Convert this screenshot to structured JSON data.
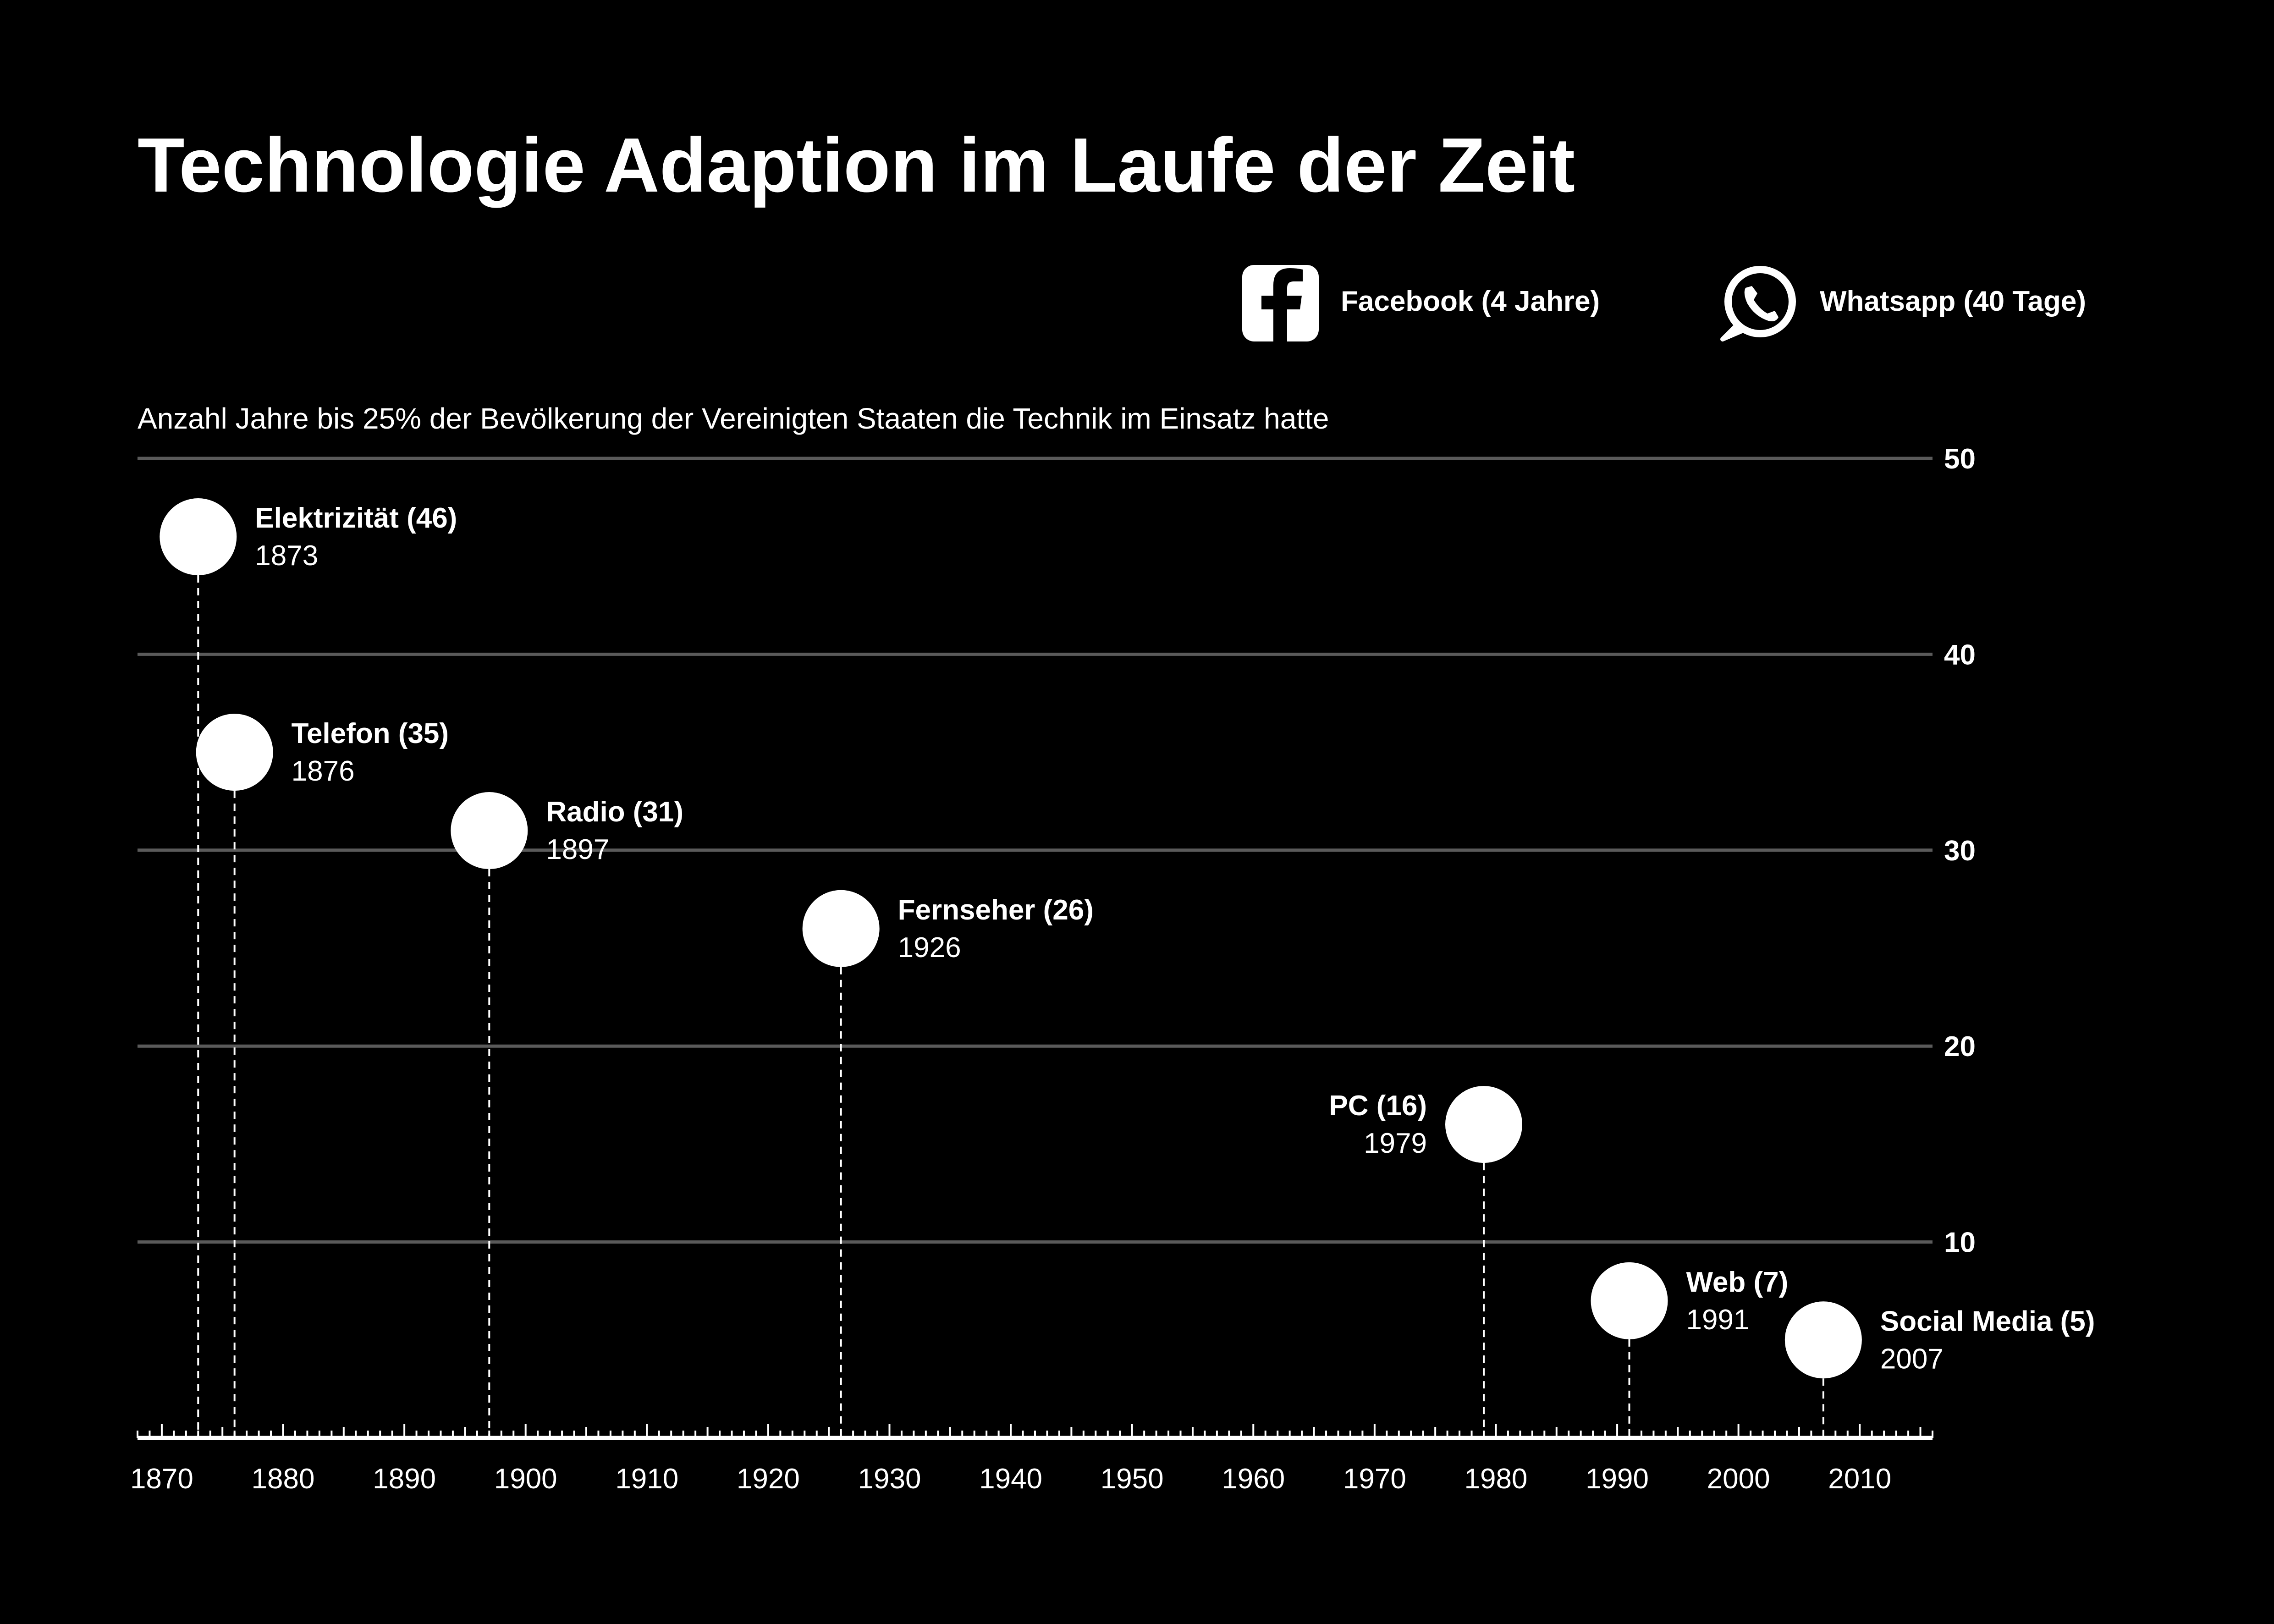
{
  "colors": {
    "background": "#000000",
    "foreground": "#ffffff",
    "grid": "#5a5a5a"
  },
  "legend": [
    {
      "icon": "facebook-icon",
      "label": "Facebook (4 Jahre)"
    },
    {
      "icon": "whatsapp-icon",
      "label": "Whatsapp (40 Tage)"
    }
  ],
  "chart_data": {
    "type": "scatter",
    "title": "Technologie Adaption im Laufe der Zeit",
    "subtitle": "Anzahl Jahre bis 25% der Bevölkerung der Vereinigten Staaten die Technik im Einsatz hatte",
    "xlabel": "",
    "ylabel": "",
    "xlim": [
      1868,
      2016
    ],
    "ylim": [
      0,
      50
    ],
    "x_ticks": [
      1870,
      1880,
      1890,
      1900,
      1910,
      1920,
      1930,
      1940,
      1950,
      1960,
      1970,
      1980,
      1990,
      2000,
      2010
    ],
    "y_ticks": [
      10,
      20,
      30,
      40,
      50
    ],
    "grid": true,
    "points": [
      {
        "name": "Elektrizität (46)",
        "year_label": "1873",
        "x": 1873,
        "y": 46,
        "label_side": "right"
      },
      {
        "name": "Telefon (35)",
        "year_label": "1876",
        "x": 1876,
        "y": 35,
        "label_side": "right"
      },
      {
        "name": "Radio (31)",
        "year_label": "1897",
        "x": 1897,
        "y": 31,
        "label_side": "right"
      },
      {
        "name": "Fernseher (26)",
        "year_label": "1926",
        "x": 1926,
        "y": 26,
        "label_side": "right"
      },
      {
        "name": "PC (16)",
        "year_label": "1979",
        "x": 1979,
        "y": 16,
        "label_side": "left"
      },
      {
        "name": "Web (7)",
        "year_label": "1991",
        "x": 1991,
        "y": 7,
        "label_side": "right"
      },
      {
        "name": "Social Media (5)",
        "year_label": "2007",
        "x": 2007,
        "y": 5,
        "label_side": "right"
      }
    ]
  }
}
